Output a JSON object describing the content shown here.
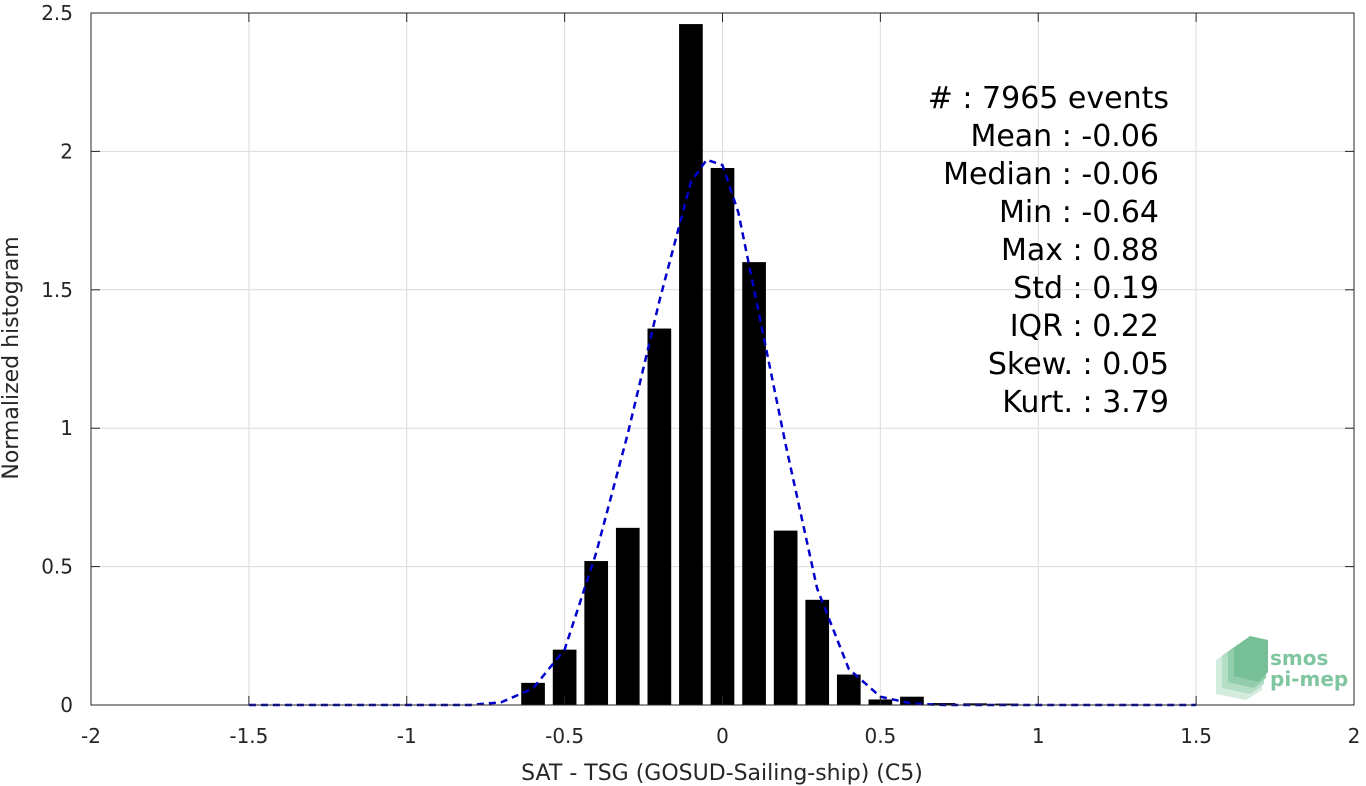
{
  "chart_data": {
    "type": "bar",
    "xlabel": "SAT - TSG (GOSUD-Sailing-ship) (C5)",
    "ylabel": "Normalized histogram",
    "xlim": [
      -2,
      2
    ],
    "ylim": [
      0,
      2.5
    ],
    "xticks": [
      -2,
      -1.5,
      -1,
      -0.5,
      0,
      0.5,
      1,
      1.5,
      2
    ],
    "xtick_labels": [
      "-2",
      "-1.5",
      "-1",
      "-0.5",
      "0",
      "0.5",
      "1",
      "1.5",
      "2"
    ],
    "yticks": [
      0,
      0.5,
      1,
      1.5,
      2,
      2.5
    ],
    "ytick_labels": [
      "0",
      "0.5",
      "1",
      "1.5",
      "2",
      "2.5"
    ],
    "grid": true,
    "bar_color": "#000000",
    "bar_width": 0.075,
    "bars": {
      "x": [
        -0.6,
        -0.5,
        -0.4,
        -0.3,
        -0.2,
        -0.1,
        0.0,
        0.1,
        0.2,
        0.3,
        0.4,
        0.5,
        0.6,
        0.7,
        0.8,
        0.9
      ],
      "values": [
        0.08,
        0.2,
        0.52,
        0.64,
        1.36,
        2.46,
        1.94,
        1.6,
        0.63,
        0.38,
        0.11,
        0.02,
        0.03,
        0.007,
        0.006,
        0.005
      ]
    },
    "fit_line": {
      "style": "dashed",
      "color": "#0000cc",
      "x": [
        -1.5,
        -1.0,
        -0.8,
        -0.7,
        -0.6,
        -0.5,
        -0.4,
        -0.3,
        -0.2,
        -0.1,
        -0.05,
        0.0,
        0.05,
        0.1,
        0.2,
        0.3,
        0.4,
        0.5,
        0.6,
        0.7,
        1.0,
        1.5
      ],
      "y": [
        0.0,
        0.0,
        0.0,
        0.01,
        0.06,
        0.2,
        0.55,
        0.98,
        1.46,
        1.89,
        1.97,
        1.95,
        1.78,
        1.5,
        0.94,
        0.42,
        0.13,
        0.03,
        0.005,
        0.0,
        0.0,
        0.0
      ]
    },
    "annotations": [
      "#  : 7965 events",
      "Mean : -0.06",
      "Median : -0.06",
      "Min : -0.64",
      "Max : 0.88",
      "Std : 0.19",
      "IQR : 0.22",
      "Skew. : 0.05",
      "Kurt. : 3.79"
    ]
  },
  "logo": {
    "line1": "smos",
    "line2": "pi-mep",
    "color": "#7fc6a0"
  }
}
